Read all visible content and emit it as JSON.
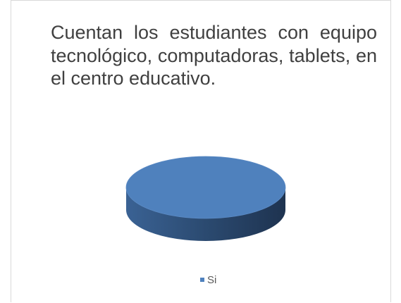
{
  "chart_data": {
    "type": "pie",
    "title": "Cuentan los estudiantes con equipo tecnológico, computadoras, tablets, en el centro educativo.",
    "categories": [
      "Si"
    ],
    "values": [
      100
    ],
    "colors": [
      "#4f81bd"
    ],
    "legend": "bottom"
  }
}
